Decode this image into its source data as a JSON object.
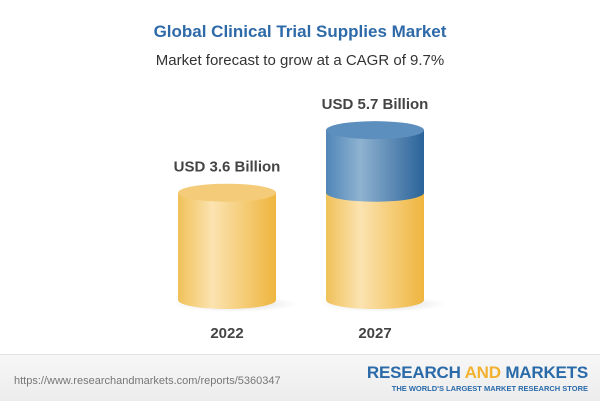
{
  "chart_data": {
    "type": "bar",
    "style": "3d-cylinder",
    "title": "Global Clinical Trial Supplies Market",
    "subtitle": "Market forecast to grow at a CAGR of 9.7%",
    "categories": [
      "2022",
      "2027"
    ],
    "values": [
      3.6,
      5.7
    ],
    "data_labels": [
      "USD 3.6 Billion",
      "USD 5.7 Billion"
    ],
    "unit": "USD Billion",
    "colors": {
      "base": "#f2c462",
      "growth": "#4f86b8",
      "title": "#2e6aa8"
    }
  },
  "footer": {
    "url": "https://www.researchandmarkets.com/reports/5360347",
    "brand_part1": "RESEARCH ",
    "brand_part2": "AND",
    "brand_part3": " MARKETS",
    "tagline": "THE WORLD'S LARGEST MARKET RESEARCH STORE"
  }
}
